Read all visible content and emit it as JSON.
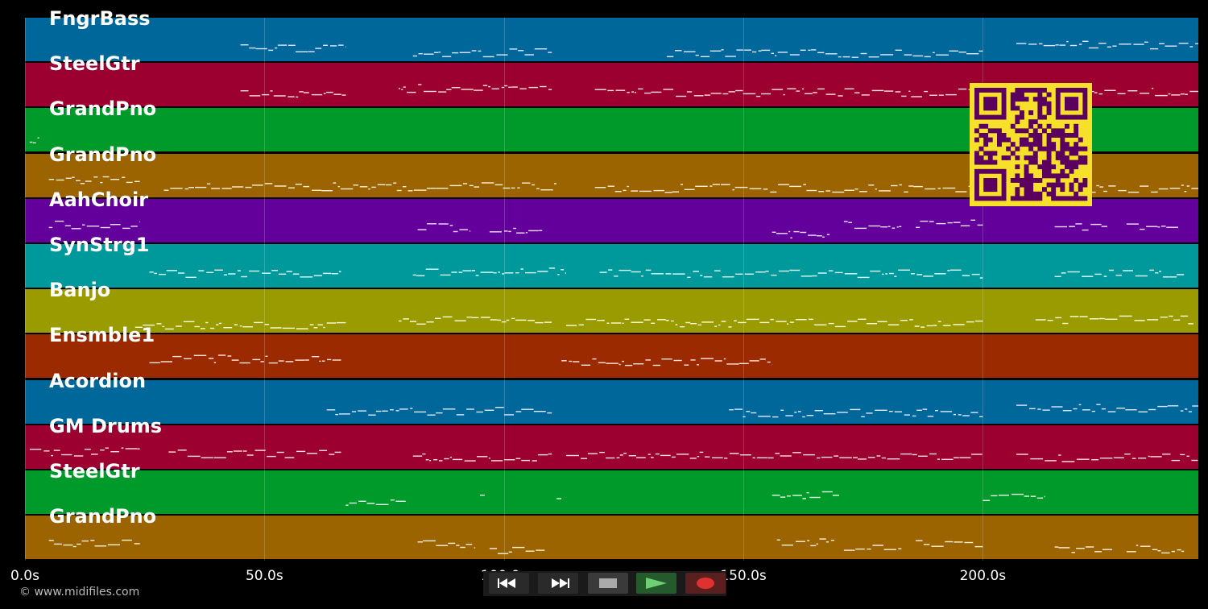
{
  "tracks": [
    {
      "name": "FngrBass",
      "color": "#00679b",
      "notes": "#dfe8ff"
    },
    {
      "name": "SteelGtr",
      "color": "#9b0030",
      "notes": "#ffe0e8"
    },
    {
      "name": "GrandPno",
      "color": "#009a2a",
      "notes": "#e0ffe6"
    },
    {
      "name": "GrandPno",
      "color": "#9b6400",
      "notes": "#fff0d8"
    },
    {
      "name": "AahChoir",
      "color": "#63009b",
      "notes": "#f0e0ff"
    },
    {
      "name": "SynStrg1",
      "color": "#00999b",
      "notes": "#e0ffff"
    },
    {
      "name": "Banjo",
      "color": "#999b00",
      "notes": "#ffffd8"
    },
    {
      "name": "Ensmble1",
      "color": "#9b2a00",
      "notes": "#ffe8e0"
    },
    {
      "name": "Acordion",
      "color": "#00679b",
      "notes": "#dfe8ff"
    },
    {
      "name": "GM Drums",
      "color": "#9b0030",
      "notes": "#ffe0e8"
    },
    {
      "name": "SteelGtr",
      "color": "#009a2a",
      "notes": "#e0ffe6"
    },
    {
      "name": "GrandPno",
      "color": "#9b6400",
      "notes": "#fff0d8"
    }
  ],
  "axis": {
    "ticks": [
      "0.0s",
      "50.0s",
      "100.0s",
      "150.0s",
      "200.0s"
    ],
    "tick_values": [
      0,
      50,
      100,
      150,
      200
    ],
    "range_seconds": [
      0,
      245
    ]
  },
  "transport": {
    "rewind_icon": "rewind-icon",
    "fast_forward_icon": "fast-forward-icon",
    "stop_icon": "stop-icon",
    "play_icon": "play-icon",
    "record_icon": "record-icon"
  },
  "footer": {
    "copyright": "© www.midifiles.com"
  },
  "colors": {
    "background": "#000000",
    "qr_fg": "#5a005e",
    "qr_bg": "#f7e02a"
  }
}
